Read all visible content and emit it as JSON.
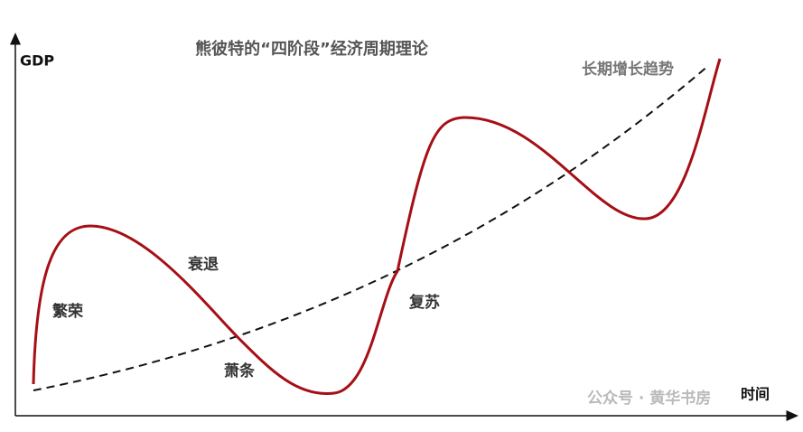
{
  "title": "熊彼特的“四阶段”经济周期理论",
  "y_axis_label": "GDP",
  "x_axis_label": "时间",
  "trend_label": "长期增长趋势",
  "phases": [
    "繁荣",
    "衰退",
    "萧条",
    "复苏"
  ],
  "watermark": "公众号 · 黄华书房"
}
